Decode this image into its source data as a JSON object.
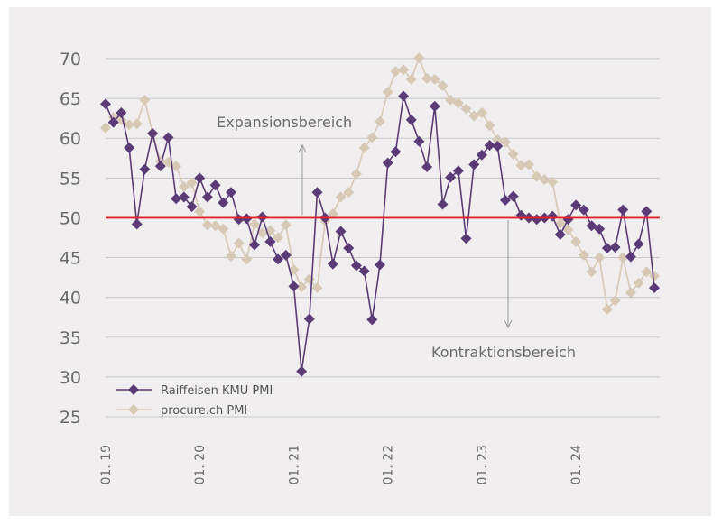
{
  "chart_data": {
    "type": "line",
    "x_tick_labels": [
      "01. 19",
      "01. 20",
      "01. 21",
      "01. 22",
      "01. 23",
      "01. 24"
    ],
    "y_ticks": [
      25,
      30,
      35,
      40,
      45,
      50,
      55,
      60,
      65,
      70
    ],
    "ylim": [
      25,
      70
    ],
    "reference_line": {
      "value": 50,
      "color": "#e0242c"
    },
    "annotations": {
      "expansion": "Expansionsbereich",
      "contraction": "Kontraktionsbereich"
    },
    "legend_position": "bottom-left",
    "grid": "horizontal",
    "series": [
      {
        "name": "Raiffeisen KMU PMI",
        "color": "#5b3b75",
        "values": [
          64.3,
          62.0,
          63.2,
          58.8,
          49.2,
          56.1,
          60.6,
          56.5,
          60.1,
          52.4,
          52.6,
          51.4,
          55.0,
          52.6,
          54.1,
          51.9,
          53.2,
          49.8,
          49.9,
          46.6,
          50.1,
          47.0,
          44.8,
          45.3,
          41.4,
          30.7,
          37.3,
          53.2,
          50.0,
          44.2,
          48.3,
          46.2,
          44.0,
          43.3,
          37.2,
          44.1,
          56.9,
          58.3,
          65.3,
          62.3,
          59.6,
          56.4,
          64.0,
          51.7,
          55.1,
          55.9,
          47.4,
          56.7,
          57.9,
          59.1,
          59.0,
          52.2,
          52.7,
          50.3,
          50.0,
          49.8,
          50.0,
          50.2,
          47.9,
          49.8,
          51.6,
          51.0,
          49.0,
          48.6,
          46.2,
          46.3,
          51.0,
          45.1,
          46.7,
          50.8,
          41.2
        ]
      },
      {
        "name": "procure.ch PMI",
        "color": "#d7c9b6",
        "values": [
          61.3,
          62.6,
          62.3,
          61.7,
          61.8,
          64.8,
          60.6,
          57.1,
          57.0,
          56.5,
          53.9,
          54.4,
          50.8,
          49.1,
          49.0,
          48.6,
          45.2,
          46.8,
          44.8,
          49.2,
          48.1,
          48.4,
          47.5,
          49.1,
          43.5,
          41.3,
          42.3,
          41.2,
          49.6,
          50.5,
          52.6,
          53.2,
          55.5,
          58.8,
          60.1,
          62.1,
          65.8,
          68.4,
          68.6,
          67.4,
          70.1,
          67.5,
          67.4,
          66.6,
          64.8,
          64.4,
          63.7,
          62.8,
          63.2,
          61.6,
          59.8,
          59.5,
          58.0,
          56.6,
          56.7,
          55.2,
          54.8,
          54.5,
          49.3,
          48.5,
          47.0,
          45.3,
          43.2,
          45.0,
          38.5,
          39.6,
          45.0,
          40.6,
          41.8,
          43.2,
          42.7
        ]
      }
    ]
  }
}
